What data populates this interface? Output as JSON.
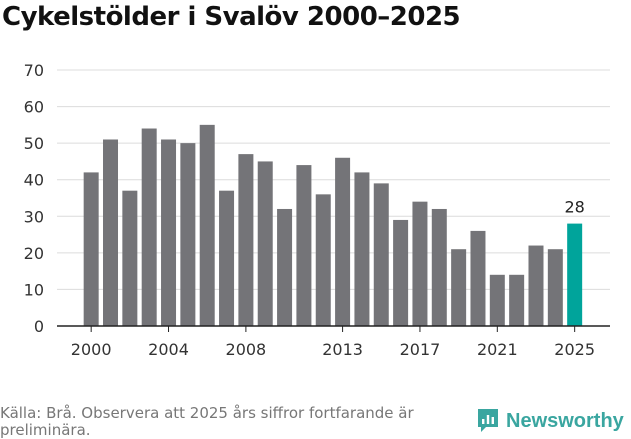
{
  "title": "Cykelstölder i Svalöv 2000–2025",
  "source": "Källa: Brå. Observera att 2025 års siffror fortfarande är preliminära.",
  "brand": {
    "name": "Newsworthy",
    "icon": "newsworthy-logo-icon"
  },
  "colors": {
    "bar": "#747478",
    "highlight": "#00a49b",
    "grid": "#dcdcdc",
    "axis": "#222222"
  },
  "chart_data": {
    "type": "bar",
    "title": "Cykelstölder i Svalöv 2000–2025",
    "xlabel": "",
    "ylabel": "",
    "categories": [
      "2000",
      "2001",
      "2002",
      "2003",
      "2004",
      "2005",
      "2006",
      "2007",
      "2008",
      "2009",
      "2010",
      "2011",
      "2012",
      "2013",
      "2014",
      "2015",
      "2016",
      "2017",
      "2018",
      "2019",
      "2020",
      "2021",
      "2022",
      "2023",
      "2024",
      "2025"
    ],
    "values": [
      42,
      51,
      37,
      54,
      51,
      50,
      55,
      37,
      47,
      45,
      32,
      44,
      36,
      46,
      42,
      39,
      29,
      34,
      32,
      21,
      26,
      14,
      14,
      22,
      21,
      28
    ],
    "ylim": [
      0,
      70
    ],
    "yticks": [
      0,
      10,
      20,
      30,
      40,
      50,
      60,
      70
    ],
    "xtick_labels": [
      "2000",
      "2004",
      "2008",
      "2013",
      "2017",
      "2021",
      "2025"
    ],
    "highlight_category": "2025",
    "data_labels": [
      {
        "category": "2025",
        "text": "28"
      }
    ],
    "grid": true
  }
}
